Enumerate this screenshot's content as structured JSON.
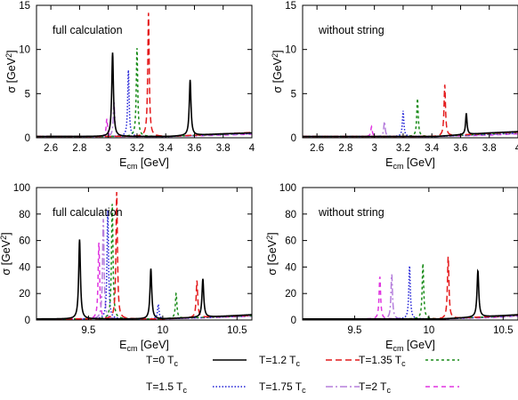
{
  "chart_data": [
    {
      "type": "line",
      "panel": "top-left",
      "annotation": "full calculation",
      "xlabel": "E",
      "xlabel_sub": "cm",
      "xlabel_unit": " [GeV]",
      "ylabel": "σ [GeV",
      "ylabel_sup": "2",
      "ylabel_end": "]",
      "xlim": [
        2.5,
        4.0
      ],
      "ylim": [
        0,
        15
      ],
      "xticks": [
        2.6,
        2.8,
        3.0,
        3.2,
        3.4,
        3.6,
        3.8,
        4.0
      ],
      "xtick_labels": [
        "2.6",
        "2.8",
        "3",
        "3.2",
        "3.4",
        "3.6",
        "3.8",
        "4"
      ],
      "yticks": [
        0,
        5,
        10,
        15
      ],
      "ytick_labels": [
        "0",
        "5",
        "10",
        "15"
      ],
      "baseline": 0.15,
      "series": [
        {
          "name": "T=0 T_c",
          "peaks": [
            [
              3.03,
              9.5,
              0.007
            ],
            [
              3.57,
              6.3,
              0.007
            ]
          ],
          "tail": [
            [
              3.8,
              0.45
            ],
            [
              4.0,
              0.55
            ]
          ]
        },
        {
          "name": "T=1.2 T_c",
          "peaks": [
            [
              3.28,
              14.0,
              0.006
            ]
          ],
          "tail": [
            [
              3.8,
              0.45
            ],
            [
              4.0,
              0.6
            ]
          ]
        },
        {
          "name": "T=1.35 T_c",
          "peaks": [
            [
              3.2,
              10.0,
              0.006
            ]
          ],
          "tail": [
            [
              3.8,
              0.4
            ],
            [
              4.0,
              0.55
            ]
          ]
        },
        {
          "name": "T=1.5 T_c",
          "peaks": [
            [
              3.14,
              7.5,
              0.006
            ]
          ],
          "tail": [
            [
              3.8,
              0.4
            ],
            [
              4.0,
              0.5
            ]
          ]
        },
        {
          "name": "T=1.75 T_c",
          "peaks": [
            [
              3.04,
              4.0,
              0.006
            ]
          ],
          "tail": [
            [
              3.8,
              0.35
            ],
            [
              4.0,
              0.45
            ]
          ]
        },
        {
          "name": "T=2 T_c",
          "peaks": [
            [
              2.99,
              2.0,
              0.006
            ]
          ],
          "tail": [
            [
              3.8,
              0.3
            ],
            [
              4.0,
              0.4
            ]
          ]
        }
      ]
    },
    {
      "type": "line",
      "panel": "top-right",
      "annotation": "without string",
      "xlabel": "E",
      "xlabel_sub": "cm",
      "xlabel_unit": " [GeV]",
      "ylabel": "σ [GeV",
      "ylabel_sup": "2",
      "ylabel_end": "]",
      "xlim": [
        2.5,
        4.0
      ],
      "ylim": [
        0,
        15
      ],
      "xticks": [
        2.6,
        2.8,
        3.0,
        3.2,
        3.4,
        3.6,
        3.8,
        4.0
      ],
      "xtick_labels": [
        "2.6",
        "2.8",
        "3",
        "3.2",
        "3.4",
        "3.6",
        "3.8",
        "4"
      ],
      "yticks": [
        0,
        5,
        10,
        15
      ],
      "ytick_labels": [
        "0",
        "5",
        "10",
        "15"
      ],
      "baseline": 0.15,
      "series": [
        {
          "name": "T=0 T_c",
          "peaks": [
            [
              3.64,
              2.4,
              0.006
            ]
          ],
          "tail": [
            [
              3.8,
              0.55
            ],
            [
              4.0,
              0.7
            ]
          ]
        },
        {
          "name": "T=1.2 T_c",
          "peaks": [
            [
              3.49,
              5.8,
              0.006
            ]
          ],
          "tail": [
            [
              3.8,
              0.5
            ],
            [
              4.0,
              0.65
            ]
          ]
        },
        {
          "name": "T=1.35 T_c",
          "peaks": [
            [
              3.3,
              4.3,
              0.006
            ]
          ],
          "tail": [
            [
              3.8,
              0.45
            ],
            [
              4.0,
              0.6
            ]
          ]
        },
        {
          "name": "T=1.5 T_c",
          "peaks": [
            [
              3.2,
              2.9,
              0.006
            ]
          ],
          "tail": [
            [
              3.8,
              0.4
            ],
            [
              4.0,
              0.55
            ]
          ]
        },
        {
          "name": "T=1.75 T_c",
          "peaks": [
            [
              3.07,
              1.7,
              0.006
            ]
          ],
          "tail": [
            [
              3.8,
              0.35
            ],
            [
              4.0,
              0.5
            ]
          ]
        },
        {
          "name": "T=2 T_c",
          "peaks": [
            [
              2.98,
              1.1,
              0.006
            ]
          ],
          "tail": [
            [
              3.8,
              0.3
            ],
            [
              4.0,
              0.45
            ]
          ]
        }
      ]
    },
    {
      "type": "line",
      "panel": "bottom-left",
      "annotation": "full calculation",
      "xlabel": "E",
      "xlabel_sub": "cm",
      "xlabel_unit": " [GeV]",
      "ylabel": "σ [GeV",
      "ylabel_sup": "2",
      "ylabel_end": "]",
      "xlim": [
        9.15,
        10.6
      ],
      "ylim": [
        0,
        100
      ],
      "xticks": [
        9.5,
        10.0,
        10.5
      ],
      "xtick_labels": [
        "9.5",
        "10",
        "10.5"
      ],
      "yticks": [
        0,
        20,
        40,
        60,
        80,
        100
      ],
      "ytick_labels": [
        "0",
        "20",
        "40",
        "60",
        "80",
        "100"
      ],
      "baseline": 0.8,
      "series": [
        {
          "name": "T=0 T_c",
          "peaks": [
            [
              9.44,
              60.0,
              0.007
            ],
            [
              9.92,
              38.0,
              0.007
            ],
            [
              10.27,
              29.0,
              0.007
            ]
          ],
          "tail": [
            [
              10.35,
              2.5
            ],
            [
              10.6,
              4.0
            ]
          ]
        },
        {
          "name": "T=1.2 T_c",
          "peaks": [
            [
              9.69,
              96.0,
              0.006
            ],
            [
              10.23,
              28.0,
              0.006
            ]
          ],
          "tail": [
            [
              10.35,
              2.5
            ],
            [
              10.6,
              3.5
            ]
          ]
        },
        {
          "name": "T=1.35 T_c",
          "peaks": [
            [
              9.66,
              88.0,
              0.006
            ],
            [
              10.09,
              19.0,
              0.006
            ]
          ],
          "tail": [
            [
              10.35,
              2.3
            ],
            [
              10.6,
              3.3
            ]
          ]
        },
        {
          "name": "T=1.5 T_c",
          "peaks": [
            [
              9.63,
              82.0,
              0.006
            ],
            [
              9.97,
              11.0,
              0.006
            ]
          ],
          "tail": [
            [
              10.35,
              2.1
            ],
            [
              10.6,
              3.1
            ]
          ]
        },
        {
          "name": "T=1.75 T_c",
          "peaks": [
            [
              9.6,
              76.0,
              0.006
            ]
          ],
          "tail": [
            [
              10.35,
              2.0
            ],
            [
              10.6,
              3.0
            ]
          ]
        },
        {
          "name": "T=2 T_c",
          "peaks": [
            [
              9.57,
              58.0,
              0.006
            ]
          ],
          "tail": [
            [
              10.35,
              1.9
            ],
            [
              10.6,
              2.9
            ]
          ]
        }
      ]
    },
    {
      "type": "line",
      "panel": "bottom-right",
      "annotation": "without string",
      "xlabel": "E",
      "xlabel_sub": "cm",
      "xlabel_unit": " [GeV]",
      "ylabel": "σ [GeV",
      "ylabel_sup": "2",
      "ylabel_end": "]",
      "xlim": [
        9.15,
        10.6
      ],
      "ylim": [
        0,
        100
      ],
      "xticks": [
        9.5,
        10.0,
        10.5
      ],
      "xtick_labels": [
        "9.5",
        "10",
        "10.5"
      ],
      "yticks": [
        0,
        20,
        40,
        60,
        80,
        100
      ],
      "ytick_labels": [
        "0",
        "20",
        "40",
        "60",
        "80",
        "100"
      ],
      "baseline": 0.8,
      "series": [
        {
          "name": "T=0 T_c",
          "peaks": [
            [
              10.33,
              35.0,
              0.007
            ]
          ],
          "tail": [
            [
              10.45,
              3.0
            ],
            [
              10.6,
              4.0
            ]
          ]
        },
        {
          "name": "T=1.2 T_c",
          "peaks": [
            [
              10.13,
              47.0,
              0.006
            ]
          ],
          "tail": [
            [
              10.45,
              2.8
            ],
            [
              10.6,
              3.8
            ]
          ]
        },
        {
          "name": "T=1.35 T_c",
          "peaks": [
            [
              9.96,
              42.0,
              0.006
            ]
          ],
          "tail": [
            [
              10.45,
              2.6
            ],
            [
              10.6,
              3.6
            ]
          ]
        },
        {
          "name": "T=1.5 T_c",
          "peaks": [
            [
              9.87,
              40.0,
              0.006
            ]
          ],
          "tail": [
            [
              10.45,
              2.4
            ],
            [
              10.6,
              3.4
            ]
          ]
        },
        {
          "name": "T=1.75 T_c",
          "peaks": [
            [
              9.75,
              34.0,
              0.006
            ]
          ],
          "tail": [
            [
              10.45,
              2.2
            ],
            [
              10.6,
              3.2
            ]
          ]
        },
        {
          "name": "T=2 T_c",
          "peaks": [
            [
              9.67,
              32.0,
              0.006
            ]
          ],
          "tail": [
            [
              10.45,
              2.0
            ],
            [
              10.6,
              3.0
            ]
          ]
        }
      ]
    }
  ],
  "legend": {
    "placement": "bottom",
    "entries": [
      {
        "label": "T=0 T",
        "sub": "c",
        "color": "#000000",
        "dash": ""
      },
      {
        "label": "T=1.2 T",
        "sub": "c",
        "color": "#e41a1c",
        "dash": "7,4"
      },
      {
        "label": "T=1.35 T",
        "sub": "c",
        "color": "#1a8c1a",
        "dash": "3,3"
      },
      {
        "label": "T=1.5 T",
        "sub": "c",
        "color": "#1f1fd6",
        "dash": "1.5,2"
      },
      {
        "label": "T=1.75 T",
        "sub": "c",
        "color": "#b57edc",
        "dash": "8,3,2,3"
      },
      {
        "label": "T=2 T",
        "sub": "c",
        "color": "#e033e0",
        "dash": "5,4"
      }
    ]
  }
}
